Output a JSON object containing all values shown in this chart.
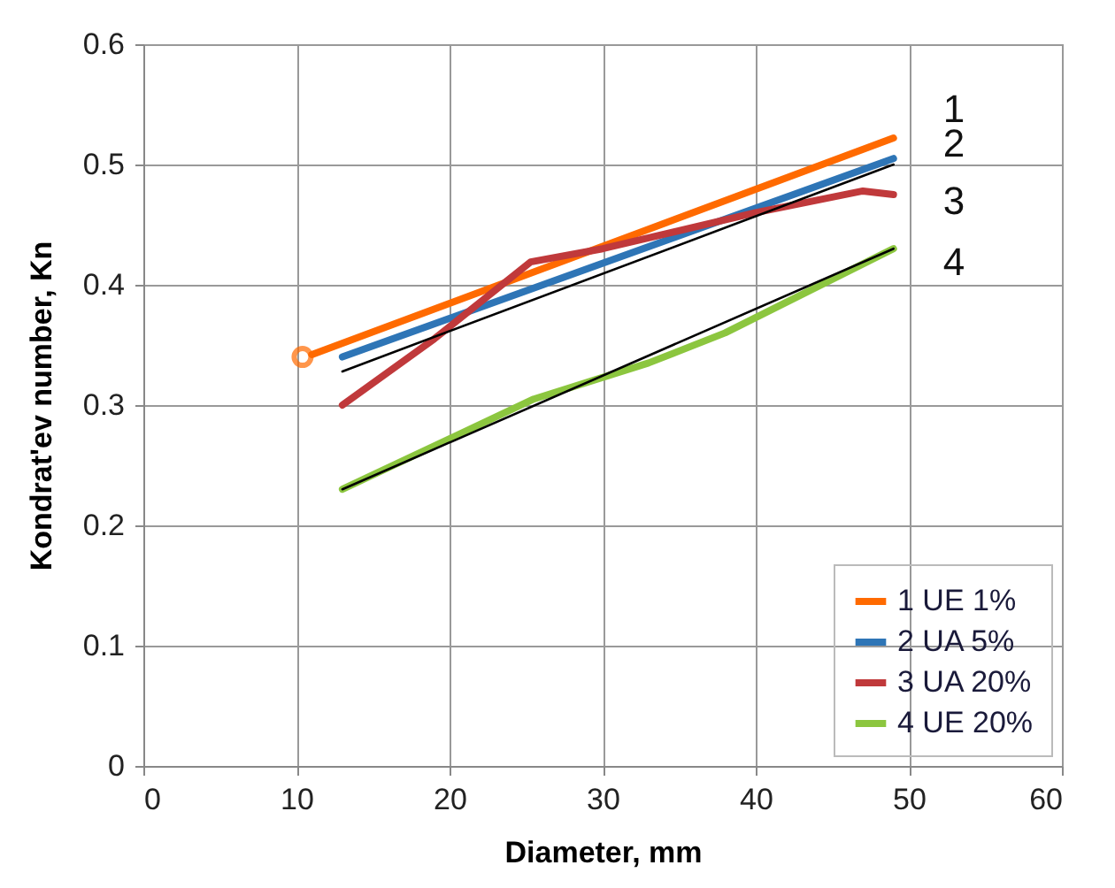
{
  "chart_data": {
    "type": "line",
    "xlabel": "Diameter, mm",
    "ylabel": "Kondrat'ev number, Kn",
    "xlim": [
      0,
      60
    ],
    "xticks": [
      0,
      10,
      20,
      30,
      40,
      50,
      60
    ],
    "ylim": [
      0,
      0.6
    ],
    "yticks": [
      0,
      0.1,
      0.2,
      0.3,
      0.4,
      0.5,
      0.6
    ],
    "grid": true,
    "legend": "bottom right",
    "series": [
      {
        "name": "1 UE 1%",
        "color": "#ff6a00",
        "x": [
          11,
          49
        ],
        "values": [
          0.342,
          0.522
        ]
      },
      {
        "name": "2 UA 5%",
        "color": "#2e75b6",
        "x": [
          13,
          49
        ],
        "values": [
          0.34,
          0.505
        ]
      },
      {
        "name": "3 UA 20%",
        "color": "#c0393b",
        "x": [
          13,
          19,
          25.3,
          30,
          40,
          47,
          49
        ],
        "values": [
          0.3,
          0.355,
          0.419,
          0.43,
          0.46,
          0.478,
          0.475
        ]
      },
      {
        "name": "4 UE 20%",
        "color": "#8cc63f",
        "x": [
          13,
          25.5,
          33,
          38,
          49
        ],
        "values": [
          0.23,
          0.305,
          0.335,
          0.36,
          0.43
        ]
      },
      {
        "color": "#000000",
        "x": [
          13,
          49
        ],
        "values": [
          0.328,
          0.5
        ]
      },
      {
        "color": "#000000",
        "x": [
          13,
          49
        ],
        "values": [
          0.23,
          0.43
        ]
      },
      {
        "type": "scatter",
        "color": "#ff6a00",
        "x": [
          10.4
        ],
        "values": [
          0.34
        ]
      }
    ],
    "annotations": [
      "1",
      "2",
      "3",
      "4"
    ]
  }
}
